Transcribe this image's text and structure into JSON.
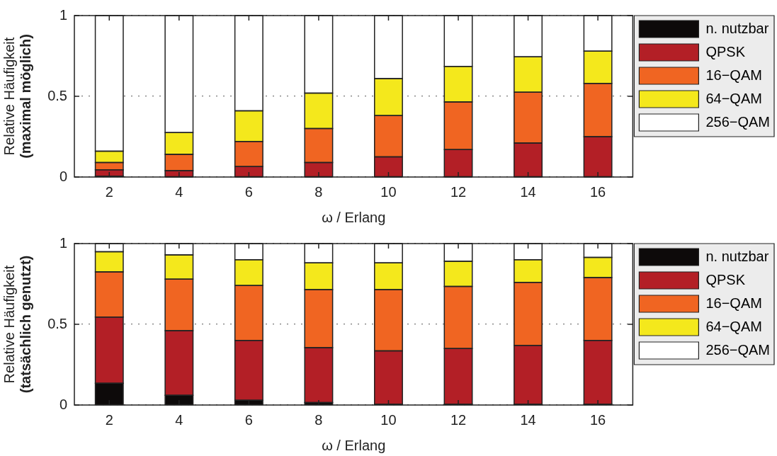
{
  "chart_data": [
    {
      "type": "bar",
      "stacked": true,
      "categories": [
        "2",
        "4",
        "6",
        "8",
        "10",
        "12",
        "14",
        "16"
      ],
      "xlabel": "ω / Erlang",
      "ylabel": "Relative Häufigkeit\n(maximal möglich)",
      "ylim": [
        0,
        1
      ],
      "yticks": [
        0,
        0.5,
        1
      ],
      "grid": "y",
      "legend": "right",
      "series": [
        {
          "name": "n. nutzbar",
          "color": "#0d0a0a",
          "values": [
            0.005,
            0,
            0,
            0,
            0,
            0,
            0,
            0
          ]
        },
        {
          "name": "QPSK",
          "color": "#b31f26",
          "values": [
            0.04,
            0.04,
            0.065,
            0.09,
            0.125,
            0.17,
            0.21,
            0.25
          ]
        },
        {
          "name": "16−QAM",
          "color": "#f06522",
          "values": [
            0.045,
            0.1,
            0.155,
            0.21,
            0.255,
            0.295,
            0.315,
            0.33
          ]
        },
        {
          "name": "64−QAM",
          "color": "#f4e81c",
          "values": [
            0.07,
            0.135,
            0.19,
            0.22,
            0.23,
            0.22,
            0.22,
            0.2
          ]
        },
        {
          "name": "256−QAM",
          "color": "#ffffff",
          "values": [
            0.84,
            0.725,
            0.59,
            0.48,
            0.39,
            0.315,
            0.255,
            0.22
          ]
        }
      ]
    },
    {
      "type": "bar",
      "stacked": true,
      "categories": [
        "2",
        "4",
        "6",
        "8",
        "10",
        "12",
        "14",
        "16"
      ],
      "xlabel": "ω / Erlang",
      "ylabel": "Relative Häufigkeit\n(tatsächlich genutzt)",
      "ylim": [
        0,
        1
      ],
      "yticks": [
        0,
        0.5,
        1
      ],
      "grid": "y",
      "legend": "right",
      "series": [
        {
          "name": "n. nutzbar",
          "color": "#0d0a0a",
          "values": [
            0.135,
            0.06,
            0.03,
            0.015,
            0.005,
            0.005,
            0.005,
            0.005
          ]
        },
        {
          "name": "QPSK",
          "color": "#b31f26",
          "values": [
            0.41,
            0.4,
            0.37,
            0.34,
            0.33,
            0.345,
            0.365,
            0.395
          ]
        },
        {
          "name": "16−QAM",
          "color": "#f06522",
          "values": [
            0.28,
            0.32,
            0.34,
            0.36,
            0.38,
            0.385,
            0.39,
            0.39
          ]
        },
        {
          "name": "64−QAM",
          "color": "#f4e81c",
          "values": [
            0.125,
            0.15,
            0.16,
            0.165,
            0.165,
            0.155,
            0.14,
            0.125
          ]
        },
        {
          "name": "256−QAM",
          "color": "#ffffff",
          "values": [
            0.05,
            0.07,
            0.1,
            0.12,
            0.12,
            0.11,
            0.1,
            0.085
          ]
        }
      ]
    }
  ]
}
